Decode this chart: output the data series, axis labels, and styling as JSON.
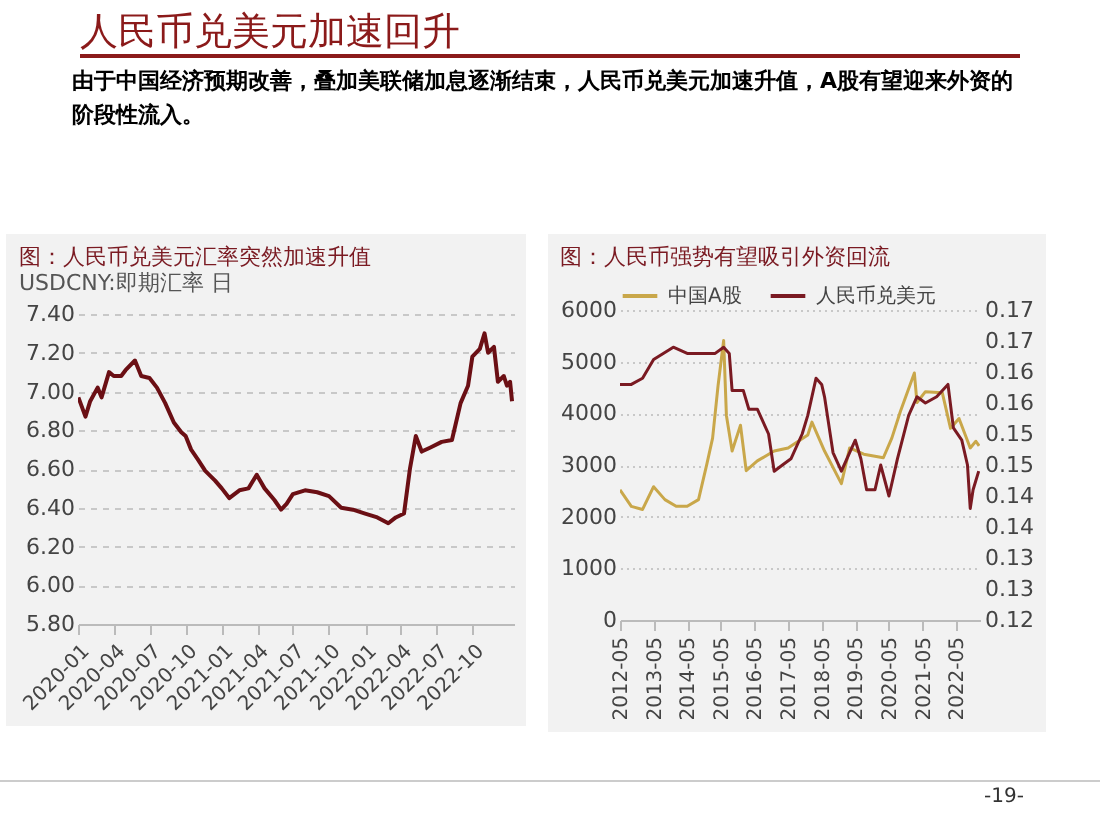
{
  "chart_data": [
    {
      "type": "line",
      "title": "图：人民币兑美元汇率突然加速升值",
      "subtitle": "USDCNY:即期汇率 日",
      "annotations": [
        "人民币兑美元加速回升",
        "由于中国经济预期改善，叠加美联储加息逐渐结束，人民币兑美元加速升值，A股有望迎来外资的阶段性流入。",
        "-19-"
      ],
      "xlim": [
        "2020-01-01",
        "2023-01-15"
      ],
      "xticks": [
        "2020-01",
        "2020-04",
        "2020-07",
        "2020-10",
        "2021-01",
        "2021-04",
        "2021-07",
        "2021-10",
        "2022-01",
        "2022-04",
        "2022-07",
        "2022-10"
      ],
      "ylim": [
        5.8,
        7.4
      ],
      "yticks": [
        {
          "value": 5.8,
          "label": "5.80"
        },
        {
          "value": 6,
          "label": "6.00"
        },
        {
          "value": 6.2,
          "label": "6.20"
        },
        {
          "value": 6.4,
          "label": "6.40"
        },
        {
          "value": 6.6,
          "label": "6.60"
        },
        {
          "value": 6.8,
          "label": "6.80"
        },
        {
          "value": 7,
          "label": "7.00"
        },
        {
          "value": 7.2,
          "label": "7.20"
        },
        {
          "value": 7.4,
          "label": "7.40"
        }
      ],
      "grid": "y",
      "line_style": "solid",
      "marker": "none",
      "x": [
        "2020-01-02",
        "2020-01-20",
        "2020-02-01",
        "2020-02-20",
        "2020-03-01",
        "2020-03-20",
        "2020-04-01",
        "2020-04-20",
        "2020-05-01",
        "2020-05-25",
        "2020-06-10",
        "2020-07-01",
        "2020-07-20",
        "2020-08-10",
        "2020-09-01",
        "2020-09-20",
        "2020-10-01",
        "2020-10-15",
        "2020-11-01",
        "2020-11-20",
        "2020-12-15",
        "2021-01-01",
        "2021-01-20",
        "2021-02-15",
        "2021-03-10",
        "2021-03-31",
        "2021-04-20",
        "2021-05-15",
        "2021-06-01",
        "2021-06-15",
        "2021-07-01",
        "2021-08-01",
        "2021-09-01",
        "2021-10-01",
        "2021-11-01",
        "2021-12-01",
        "2022-01-01",
        "2022-02-01",
        "2022-03-01",
        "2022-03-20",
        "2022-04-10",
        "2022-04-25",
        "2022-05-10",
        "2022-05-25",
        "2022-06-15",
        "2022-07-15",
        "2022-08-10",
        "2022-09-01",
        "2022-09-20",
        "2022-10-01",
        "2022-10-20",
        "2022-11-01",
        "2022-11-10",
        "2022-11-25",
        "2022-12-05",
        "2022-12-20",
        "2022-12-28",
        "2023-01-05",
        "2023-01-10"
      ],
      "series": [
        {
          "color": "#6b0f14",
          "values": [
            6.97,
            6.87,
            6.95,
            7.02,
            6.97,
            7.1,
            7.08,
            7.08,
            7.11,
            7.16,
            7.08,
            7.07,
            7.02,
            6.94,
            6.84,
            6.79,
            6.77,
            6.7,
            6.65,
            6.59,
            6.54,
            6.5,
            6.45,
            6.49,
            6.5,
            6.57,
            6.5,
            6.44,
            6.39,
            6.42,
            6.47,
            6.49,
            6.48,
            6.46,
            6.4,
            6.39,
            6.37,
            6.35,
            6.32,
            6.35,
            6.37,
            6.6,
            6.77,
            6.69,
            6.71,
            6.74,
            6.75,
            6.94,
            7.03,
            7.18,
            7.22,
            7.3,
            7.2,
            7.23,
            7.05,
            7.08,
            7.03,
            7.05,
            6.95
          ]
        }
      ]
    },
    {
      "type": "line",
      "title": "图：人民币强势有望吸引外资回流",
      "legend": "top",
      "grid": "y",
      "line_style": "solid",
      "marker": "none",
      "xlim": [
        "2012-05-01",
        "2023-01-15"
      ],
      "xticks": [
        "2012-05",
        "2013-05",
        "2014-05",
        "2015-05",
        "2016-05",
        "2017-05",
        "2018-05",
        "2019-05",
        "2020-05",
        "2021-05",
        "2022-05"
      ],
      "ylim": [
        0,
        6000
      ],
      "yticks": [
        0,
        1000,
        2000,
        3000,
        4000,
        5000,
        6000
      ],
      "y2lim": [
        0.12,
        0.17
      ],
      "y2ticks": [
        {
          "value": 0.12,
          "label": "0.12"
        },
        {
          "value": 0.125,
          "label": "0.13"
        },
        {
          "value": 0.13,
          "label": "0.13"
        },
        {
          "value": 0.135,
          "label": "0.14"
        },
        {
          "value": 0.14,
          "label": "0.14"
        },
        {
          "value": 0.145,
          "label": "0.15"
        },
        {
          "value": 0.15,
          "label": "0.15"
        },
        {
          "value": 0.155,
          "label": "0.16"
        },
        {
          "value": 0.16,
          "label": "0.16"
        },
        {
          "value": 0.165,
          "label": "0.17"
        },
        {
          "value": 0.17,
          "label": "0.17"
        }
      ],
      "series": [
        {
          "name": "中国A股",
          "color": "#c9a74a",
          "x": [
            "2012-05-01",
            "2012-09-01",
            "2013-01-01",
            "2013-05-01",
            "2013-09-01",
            "2014-01-01",
            "2014-05-01",
            "2014-09-01",
            "2014-12-01",
            "2015-02-01",
            "2015-04-01",
            "2015-06-01",
            "2015-07-01",
            "2015-09-01",
            "2015-12-01",
            "2016-02-01",
            "2016-06-01",
            "2016-12-01",
            "2017-05-01",
            "2017-12-01",
            "2018-01-15",
            "2018-06-01",
            "2018-12-01",
            "2019-03-01",
            "2019-08-01",
            "2020-03-01",
            "2020-06-01",
            "2020-09-01",
            "2021-02-01",
            "2021-03-01",
            "2021-06-01",
            "2021-12-01",
            "2022-03-01",
            "2022-06-01",
            "2022-10-01",
            "2022-12-01",
            "2023-01-05"
          ],
          "values": [
            2520,
            2200,
            2140,
            2580,
            2330,
            2200,
            2200,
            2330,
            3020,
            3520,
            4530,
            5410,
            3960,
            3270,
            3770,
            2890,
            3080,
            3270,
            3330,
            3580,
            3830,
            3270,
            2640,
            3330,
            3210,
            3140,
            3520,
            4030,
            4780,
            4210,
            4420,
            4400,
            3710,
            3900,
            3330,
            3460,
            3370
          ]
        },
        {
          "name": "人民币兑美元",
          "color": "#7a1a22",
          "axis": "y2",
          "x": [
            "2012-05-01",
            "2012-09-01",
            "2013-01-01",
            "2013-05-01",
            "2013-12-01",
            "2014-05-01",
            "2014-12-01",
            "2015-03-01",
            "2015-06-01",
            "2015-08-01",
            "2015-09-01",
            "2016-01-01",
            "2016-03-01",
            "2016-06-01",
            "2016-10-01",
            "2016-12-01",
            "2017-03-01",
            "2017-06-01",
            "2017-10-01",
            "2017-12-01",
            "2018-03-01",
            "2018-05-01",
            "2018-06-01",
            "2018-09-01",
            "2018-12-01",
            "2019-03-01",
            "2019-05-01",
            "2019-07-01",
            "2019-09-01",
            "2019-12-01",
            "2020-02-01",
            "2020-05-01",
            "2020-08-01",
            "2020-12-01",
            "2021-03-01",
            "2021-06-01",
            "2021-10-01",
            "2022-02-01",
            "2022-04-01",
            "2022-07-01",
            "2022-09-01",
            "2022-10-01",
            "2022-11-01",
            "2023-01-01"
          ],
          "values": [
            0.158,
            0.158,
            0.159,
            0.162,
            0.164,
            0.163,
            0.163,
            0.163,
            0.164,
            0.163,
            0.157,
            0.157,
            0.154,
            0.154,
            0.15,
            0.144,
            0.145,
            0.146,
            0.15,
            0.153,
            0.159,
            0.158,
            0.156,
            0.147,
            0.144,
            0.147,
            0.149,
            0.146,
            0.141,
            0.141,
            0.145,
            0.14,
            0.146,
            0.153,
            0.156,
            0.155,
            0.156,
            0.158,
            0.151,
            0.149,
            0.145,
            0.138,
            0.141,
            0.144
          ]
        }
      ]
    }
  ]
}
